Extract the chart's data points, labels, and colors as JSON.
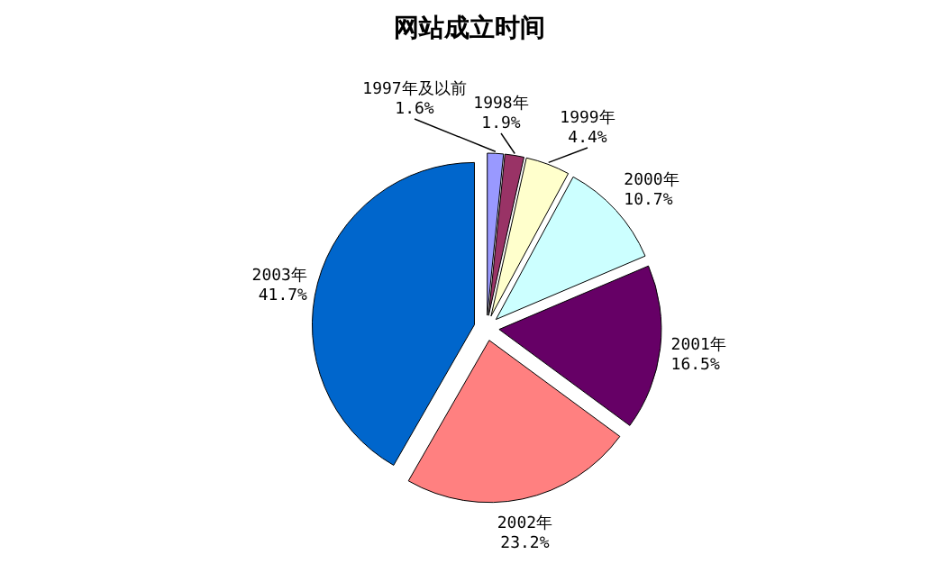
{
  "chart_data": {
    "type": "pie",
    "title": "网站成立时间",
    "categories": [
      "1997年及以前",
      "1998年",
      "1999年",
      "2000年",
      "2001年",
      "2002年",
      "2003年"
    ],
    "values": [
      1.6,
      1.9,
      4.4,
      10.7,
      16.5,
      23.2,
      41.7
    ],
    "value_labels": [
      "1.6%",
      "1.9%",
      "4.4%",
      "10.7%",
      "16.5%",
      "23.2%",
      "41.7%"
    ],
    "colors": [
      "#9999ff",
      "#993366",
      "#ffffcc",
      "#ccffff",
      "#660066",
      "#ff8080",
      "#0066cc"
    ]
  }
}
